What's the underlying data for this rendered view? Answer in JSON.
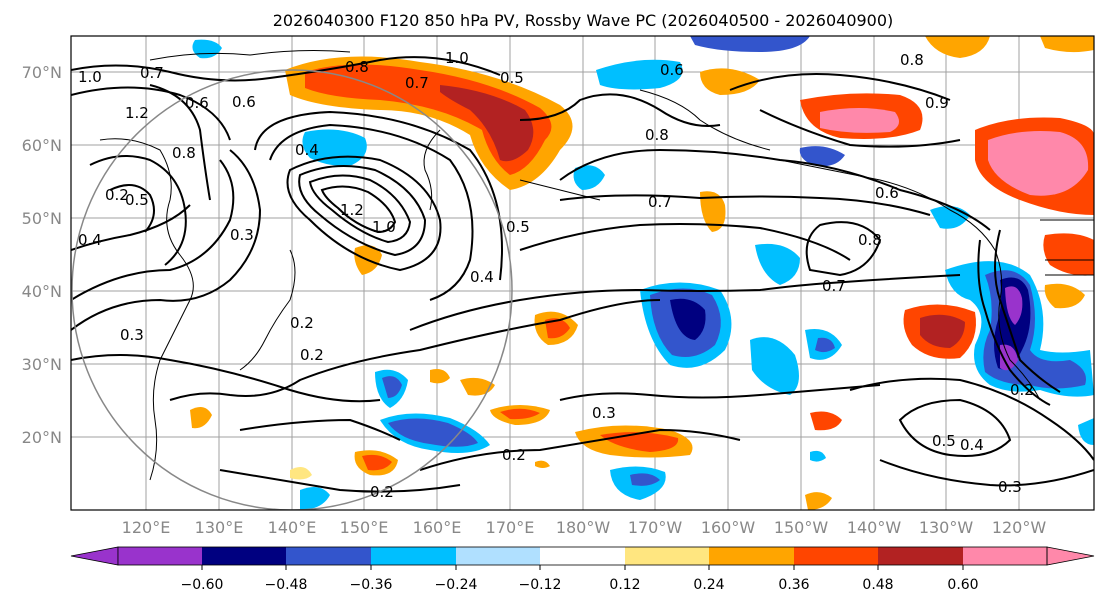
{
  "title": "2026040300 F120 850 hPa PV, Rossby Wave PC (2026040500 - 2026040900)",
  "map": {
    "lat_ticks": [
      "70°N",
      "60°N",
      "50°N",
      "40°N",
      "30°N",
      "20°N"
    ],
    "lon_ticks": [
      "120°E",
      "130°E",
      "140°E",
      "150°E",
      "160°E",
      "170°E",
      "180°W",
      "170°W",
      "160°W",
      "150°W",
      "140°W",
      "130°W",
      "120°W"
    ],
    "contour_labels": [
      "1.0",
      "0.7",
      "1.2",
      "0.6",
      "0.8",
      "0.5",
      "0.4",
      "0.3",
      "0.2",
      "1.0",
      "0.8",
      "0.7",
      "0.5",
      "0.6",
      "0.4",
      "1.2",
      "1.0",
      "0.5",
      "0.4",
      "0.6",
      "0.8",
      "0.8",
      "0.9",
      "0.6",
      "0.7",
      "0.8",
      "0.7",
      "0.3",
      "0.2",
      "0.2",
      "0.5",
      "0.4",
      "0.3",
      "0.3",
      "0.2",
      "0.2",
      "0.2"
    ]
  },
  "colorbar": {
    "labels": [
      "−0.60",
      "−0.48",
      "−0.36",
      "−0.24",
      "−0.12",
      "0.12",
      "0.24",
      "0.36",
      "0.48",
      "0.60"
    ],
    "colors": [
      "#9933cc",
      "#000080",
      "#3355cc",
      "#00bfff",
      "#b0e0ff",
      "#ffffff",
      "#ffe680",
      "#ffa500",
      "#ff4500",
      "#b22222",
      "#ff88aa"
    ]
  }
}
